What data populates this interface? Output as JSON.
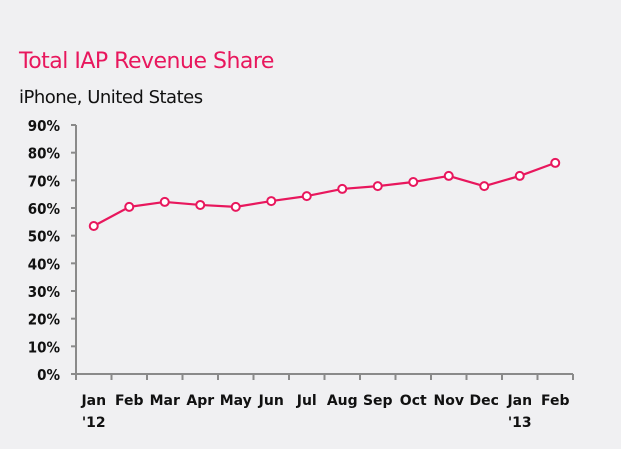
{
  "chart_data": {
    "type": "line",
    "title": "Total IAP Revenue Share",
    "subtitle": "iPhone, United States",
    "xlabel": "",
    "ylabel": "",
    "categories": [
      "Jan",
      "Feb",
      "Mar",
      "Apr",
      "May",
      "Jun",
      "Jul",
      "Aug",
      "Sep",
      "Oct",
      "Nov",
      "Dec",
      "Jan",
      "Feb"
    ],
    "category_sublabels": [
      "'12",
      "",
      "",
      "",
      "",
      "",
      "",
      "",
      "",
      "",
      "",
      "",
      "'13",
      ""
    ],
    "series": [
      {
        "name": "Total IAP Revenue Share",
        "values": [
          53.5,
          60.4,
          62.2,
          61.1,
          60.4,
          62.5,
          64.3,
          66.9,
          67.9,
          69.4,
          71.6,
          67.9,
          71.6,
          76.3
        ]
      }
    ],
    "ylim": [
      0,
      90
    ],
    "yticks": [
      0,
      10,
      20,
      30,
      40,
      50,
      60,
      70,
      80,
      90
    ],
    "ytick_labels": [
      "0%",
      "10%",
      "20%",
      "30%",
      "40%",
      "50%",
      "60%",
      "70%",
      "80%",
      "90%"
    ],
    "grid": false,
    "legend": "none",
    "colors": {
      "line": "#e8175d",
      "marker_fill": "#ffffff",
      "axis": "#8a8a8a",
      "title": "#e8175d",
      "background": "#f0f0f2"
    }
  }
}
